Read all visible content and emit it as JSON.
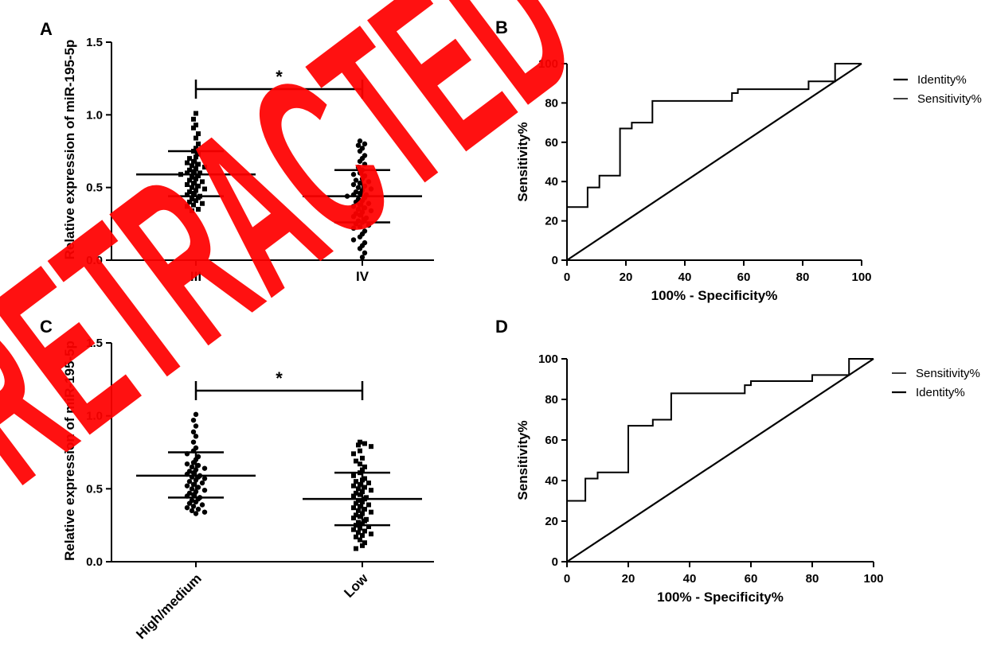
{
  "panels": {
    "a": "A",
    "b": "B",
    "c": "C",
    "d": "D"
  },
  "watermark": "RETRACTED",
  "colors": {
    "ink": "#000000",
    "stamp": "#ff0000",
    "background": "#ffffff"
  },
  "chart_data": [
    {
      "type": "scatter",
      "panel": "A",
      "ylabel": "Relative expression  of miR-195-5p",
      "categories": [
        "III",
        "IV"
      ],
      "ylim": [
        0,
        1.5
      ],
      "yticks": [
        "0.0",
        "0.5",
        "1.0",
        "1.5"
      ],
      "significance": "*",
      "groups": [
        {
          "name": "III",
          "mean": 0.59,
          "sd_upper": 0.75,
          "sd_lower": 0.44,
          "marker": "square",
          "points": [
            1.01,
            0.97,
            0.93,
            0.91,
            0.87,
            0.84,
            0.8,
            0.77,
            0.75,
            0.73,
            0.71,
            0.7,
            0.68,
            0.67,
            0.66,
            0.65,
            0.64,
            0.63,
            0.62,
            0.61,
            0.6,
            0.6,
            0.59,
            0.58,
            0.57,
            0.56,
            0.55,
            0.54,
            0.53,
            0.52,
            0.51,
            0.5,
            0.49,
            0.48,
            0.47,
            0.46,
            0.45,
            0.44,
            0.43,
            0.42,
            0.41,
            0.4,
            0.39,
            0.38,
            0.37,
            0.35,
            0.34
          ]
        },
        {
          "name": "IV",
          "mean": 0.44,
          "sd_upper": 0.62,
          "sd_lower": 0.26,
          "marker": "circle",
          "points": [
            0.82,
            0.8,
            0.79,
            0.77,
            0.75,
            0.72,
            0.7,
            0.68,
            0.66,
            0.64,
            0.62,
            0.6,
            0.59,
            0.58,
            0.56,
            0.55,
            0.54,
            0.53,
            0.52,
            0.51,
            0.5,
            0.49,
            0.48,
            0.47,
            0.46,
            0.45,
            0.45,
            0.44,
            0.43,
            0.42,
            0.41,
            0.4,
            0.39,
            0.38,
            0.37,
            0.36,
            0.35,
            0.34,
            0.33,
            0.32,
            0.31,
            0.3,
            0.29,
            0.28,
            0.27,
            0.26,
            0.25,
            0.24,
            0.23,
            0.22,
            0.2,
            0.18,
            0.16,
            0.14,
            0.12,
            0.1,
            0.08,
            0.05,
            0.02
          ]
        }
      ]
    },
    {
      "type": "line",
      "panel": "B",
      "xlabel": "100% - Specificity%",
      "ylabel": "Sensitivity%",
      "xlim": [
        0,
        100
      ],
      "ylim": [
        0,
        100
      ],
      "xticks": [
        "0",
        "20",
        "40",
        "60",
        "80",
        "100"
      ],
      "yticks": [
        "0",
        "20",
        "40",
        "60",
        "80",
        "100"
      ],
      "legend_position": "right",
      "series": [
        {
          "name": "Identity%",
          "x": [
            0,
            100
          ],
          "y": [
            0,
            100
          ]
        },
        {
          "name": "Sensitivity%",
          "x": [
            0,
            0,
            7,
            7,
            11,
            11,
            18,
            18,
            22,
            22,
            29,
            29,
            56,
            56,
            58,
            58,
            82,
            82,
            91,
            91,
            100
          ],
          "y": [
            0,
            27,
            27,
            37,
            37,
            43,
            43,
            67,
            67,
            70,
            70,
            81,
            81,
            85,
            85,
            87,
            87,
            91,
            91,
            100,
            100
          ]
        }
      ]
    },
    {
      "type": "scatter",
      "panel": "C",
      "ylabel": "Relative expression  of miR-195-5p",
      "categories": [
        "High/medium",
        "Low"
      ],
      "ylim": [
        0,
        1.5
      ],
      "yticks": [
        "0.0",
        "0.5",
        "1.0",
        "1.5"
      ],
      "significance": "*",
      "groups": [
        {
          "name": "High/medium",
          "mean": 0.59,
          "sd_upper": 0.75,
          "sd_lower": 0.44,
          "marker": "circle",
          "points": [
            1.01,
            0.97,
            0.93,
            0.89,
            0.86,
            0.82,
            0.78,
            0.76,
            0.74,
            0.72,
            0.7,
            0.68,
            0.67,
            0.66,
            0.65,
            0.64,
            0.63,
            0.62,
            0.61,
            0.6,
            0.59,
            0.58,
            0.58,
            0.57,
            0.56,
            0.55,
            0.54,
            0.53,
            0.52,
            0.51,
            0.5,
            0.49,
            0.48,
            0.47,
            0.46,
            0.45,
            0.44,
            0.43,
            0.42,
            0.41,
            0.4,
            0.39,
            0.38,
            0.37,
            0.36,
            0.35,
            0.34,
            0.33
          ]
        },
        {
          "name": "Low",
          "mean": 0.43,
          "sd_upper": 0.61,
          "sd_lower": 0.25,
          "marker": "square",
          "points": [
            0.82,
            0.81,
            0.8,
            0.79,
            0.76,
            0.74,
            0.71,
            0.69,
            0.67,
            0.65,
            0.63,
            0.61,
            0.59,
            0.57,
            0.56,
            0.55,
            0.54,
            0.53,
            0.52,
            0.51,
            0.5,
            0.49,
            0.48,
            0.47,
            0.46,
            0.45,
            0.44,
            0.43,
            0.42,
            0.41,
            0.4,
            0.39,
            0.38,
            0.37,
            0.36,
            0.35,
            0.34,
            0.33,
            0.32,
            0.31,
            0.3,
            0.29,
            0.28,
            0.27,
            0.26,
            0.25,
            0.24,
            0.23,
            0.22,
            0.21,
            0.2,
            0.19,
            0.18,
            0.17,
            0.15,
            0.13,
            0.11,
            0.09
          ]
        }
      ]
    },
    {
      "type": "line",
      "panel": "D",
      "xlabel": "100% - Specificity%",
      "ylabel": "Sensitivity%",
      "xlim": [
        0,
        100
      ],
      "ylim": [
        0,
        100
      ],
      "xticks": [
        "0",
        "20",
        "40",
        "60",
        "80",
        "100"
      ],
      "yticks": [
        "0",
        "20",
        "40",
        "60",
        "80",
        "100"
      ],
      "legend_position": "right",
      "series": [
        {
          "name": "Sensitivity%",
          "x": [
            0,
            0,
            6,
            6,
            10,
            10,
            20,
            20,
            28,
            28,
            34,
            34,
            58,
            58,
            60,
            60,
            80,
            80,
            92,
            92,
            100
          ],
          "y": [
            0,
            30,
            30,
            41,
            41,
            44,
            44,
            67,
            67,
            70,
            70,
            83,
            83,
            87,
            87,
            89,
            89,
            92,
            92,
            100,
            100
          ]
        },
        {
          "name": "Identity%",
          "x": [
            0,
            100
          ],
          "y": [
            0,
            100
          ]
        }
      ]
    }
  ]
}
